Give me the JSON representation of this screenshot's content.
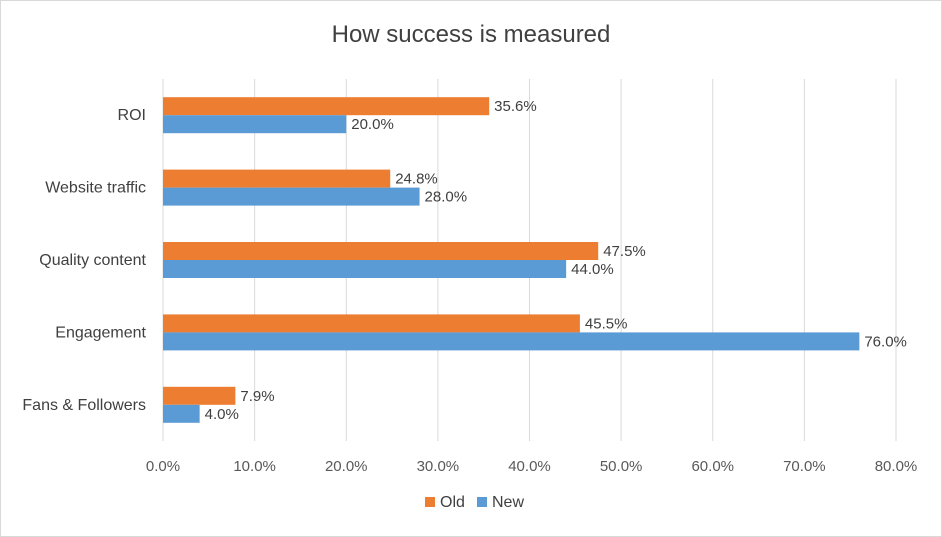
{
  "chart_data": {
    "type": "bar",
    "orientation": "horizontal",
    "title": "How success is measured",
    "categories": [
      "ROI",
      "Website traffic",
      "Quality content",
      "Engagement",
      "Fans & Followers"
    ],
    "series": [
      {
        "name": "Old",
        "color": "#ED7D31",
        "values": [
          35.6,
          24.8,
          47.5,
          45.5,
          7.9
        ],
        "labels": [
          "35.6%",
          "24.8%",
          "47.5%",
          "45.5%",
          "7.9%"
        ]
      },
      {
        "name": "New",
        "color": "#5B9BD5",
        "values": [
          20.0,
          28.0,
          44.0,
          76.0,
          4.0
        ],
        "labels": [
          "20.0%",
          "28.0%",
          "44.0%",
          "76.0%",
          "4.0%"
        ]
      }
    ],
    "x_ticks": [
      "0.0%",
      "10.0%",
      "20.0%",
      "30.0%",
      "40.0%",
      "50.0%",
      "60.0%",
      "70.0%",
      "80.0%"
    ],
    "xlim": [
      0,
      80
    ],
    "grid": true,
    "legend_position": "bottom",
    "gridline_color": "#d9d9d9"
  }
}
